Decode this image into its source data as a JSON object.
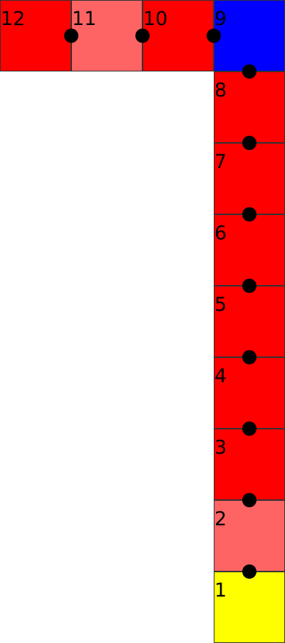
{
  "board": {
    "cells": [
      {
        "label": "1",
        "color": "#ffff00"
      },
      {
        "label": "2",
        "color": "#ff6464"
      },
      {
        "label": "3",
        "color": "#ff0000"
      },
      {
        "label": "4",
        "color": "#ff0000"
      },
      {
        "label": "5",
        "color": "#ff0000"
      },
      {
        "label": "6",
        "color": "#ff0000"
      },
      {
        "label": "7",
        "color": "#ff0000"
      },
      {
        "label": "8",
        "color": "#ff0000"
      },
      {
        "label": "9",
        "color": "#0000ff"
      },
      {
        "label": "10",
        "color": "#ff0000"
      },
      {
        "label": "11",
        "color": "#ff6464"
      },
      {
        "label": "12",
        "color": "#ff0000"
      }
    ],
    "connector_color": "#000000"
  }
}
